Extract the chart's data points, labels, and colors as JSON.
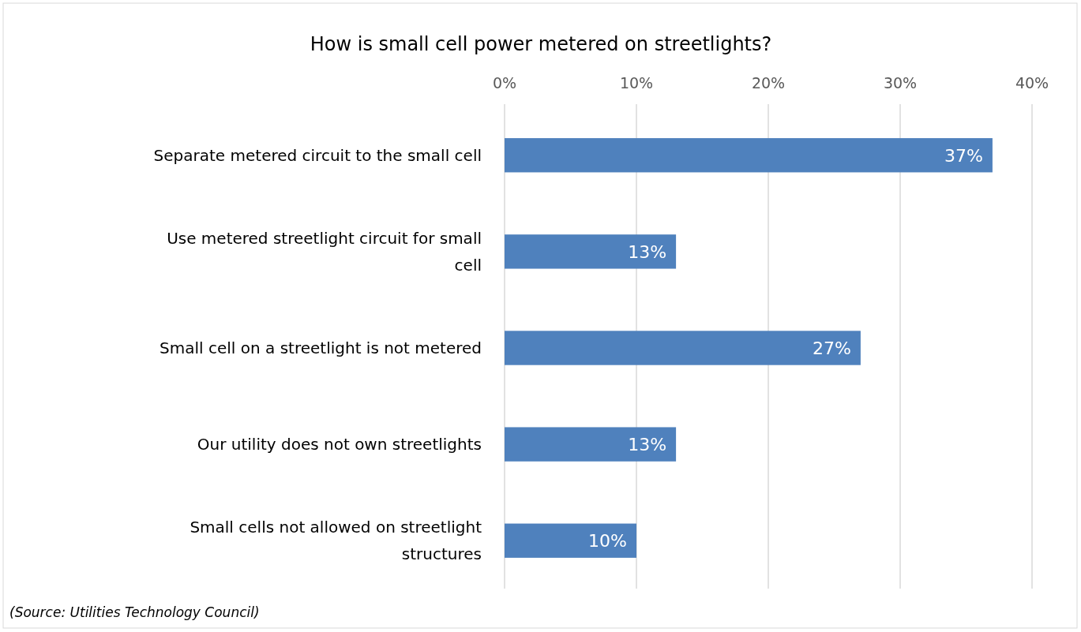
{
  "chart_data": {
    "type": "bar",
    "orientation": "horizontal",
    "title": "How is small cell power metered on streetlights?",
    "categories": [
      "Separate metered circuit to the small cell",
      "Use metered streetlight circuit for small cell",
      "Small cell on a streetlight is not metered",
      "Our utility does not own streetlights",
      "Small cells not allowed on streetlight structures"
    ],
    "values": [
      37,
      13,
      27,
      13,
      10
    ],
    "value_labels": [
      "37%",
      "13%",
      "27%",
      "13%",
      "10%"
    ],
    "color": "#4f81bd",
    "xlim": [
      0,
      40
    ],
    "xticks": [
      {
        "value": 0,
        "label": "0%"
      },
      {
        "value": 10,
        "label": "10%"
      },
      {
        "value": 20,
        "label": "20%"
      },
      {
        "value": 30,
        "label": "30%"
      },
      {
        "value": 40,
        "label": "40%"
      }
    ],
    "grid": "x",
    "annotations": [
      "(Source: Utilities Technology Council)"
    ]
  }
}
